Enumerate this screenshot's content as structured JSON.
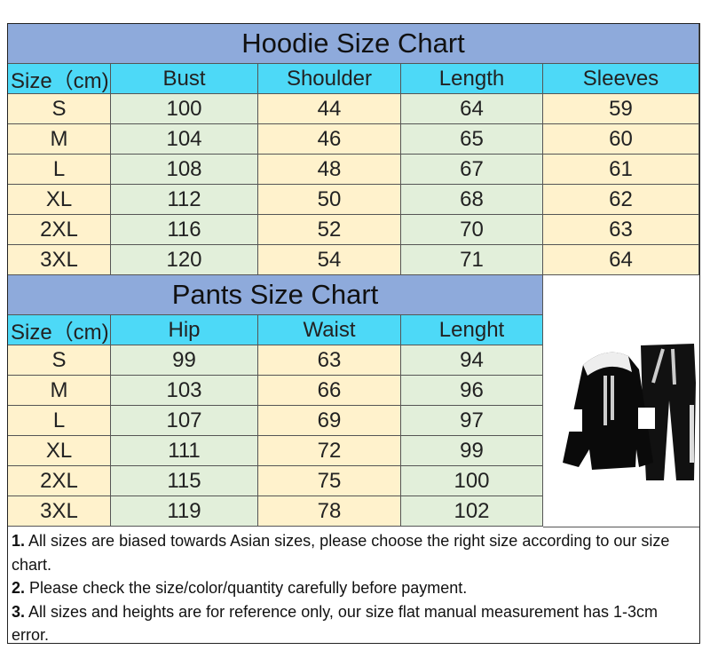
{
  "hoodie": {
    "title": "Hoodie Size Chart",
    "headers": [
      "Size（cm)",
      "Bust",
      "Shoulder",
      "Length",
      "Sleeves"
    ],
    "rows": [
      [
        "S",
        "100",
        "44",
        "64",
        "59"
      ],
      [
        "M",
        "104",
        "46",
        "65",
        "60"
      ],
      [
        "L",
        "108",
        "48",
        "67",
        "61"
      ],
      [
        "XL",
        "112",
        "50",
        "68",
        "62"
      ],
      [
        "2XL",
        "116",
        "52",
        "70",
        "63"
      ],
      [
        "3XL",
        "120",
        "54",
        "71",
        "64"
      ]
    ]
  },
  "pants": {
    "title": "Pants Size Chart",
    "headers": [
      "Size（cm)",
      "Hip",
      "Waist",
      "Lenght"
    ],
    "rows": [
      [
        "S",
        "99",
        "63",
        "94"
      ],
      [
        "M",
        "103",
        "66",
        "96"
      ],
      [
        "L",
        "107",
        "69",
        "97"
      ],
      [
        "XL",
        "111",
        "72",
        "99"
      ],
      [
        "2XL",
        "115",
        "75",
        "100"
      ],
      [
        "3XL",
        "119",
        "78",
        "102"
      ]
    ]
  },
  "product_image": {
    "icon": "black-hoodie-and-pants-tracksuit-photo"
  },
  "notes": [
    {
      "num": "1.",
      "text": "All sizes are biased towards Asian sizes, please choose the right size according to our size chart."
    },
    {
      "num": "2.",
      "text": "Please check the size/color/quantity carefully before payment."
    },
    {
      "num": "3.",
      "text": "All sizes and heights are for reference only, our size flat manual measurement has 1-3cm error."
    }
  ],
  "colors": {
    "title_bg": "#8eaadb",
    "header_bg": "#4dd9f7",
    "yellow_col": "#fff2cc",
    "green_col": "#e2efda"
  }
}
